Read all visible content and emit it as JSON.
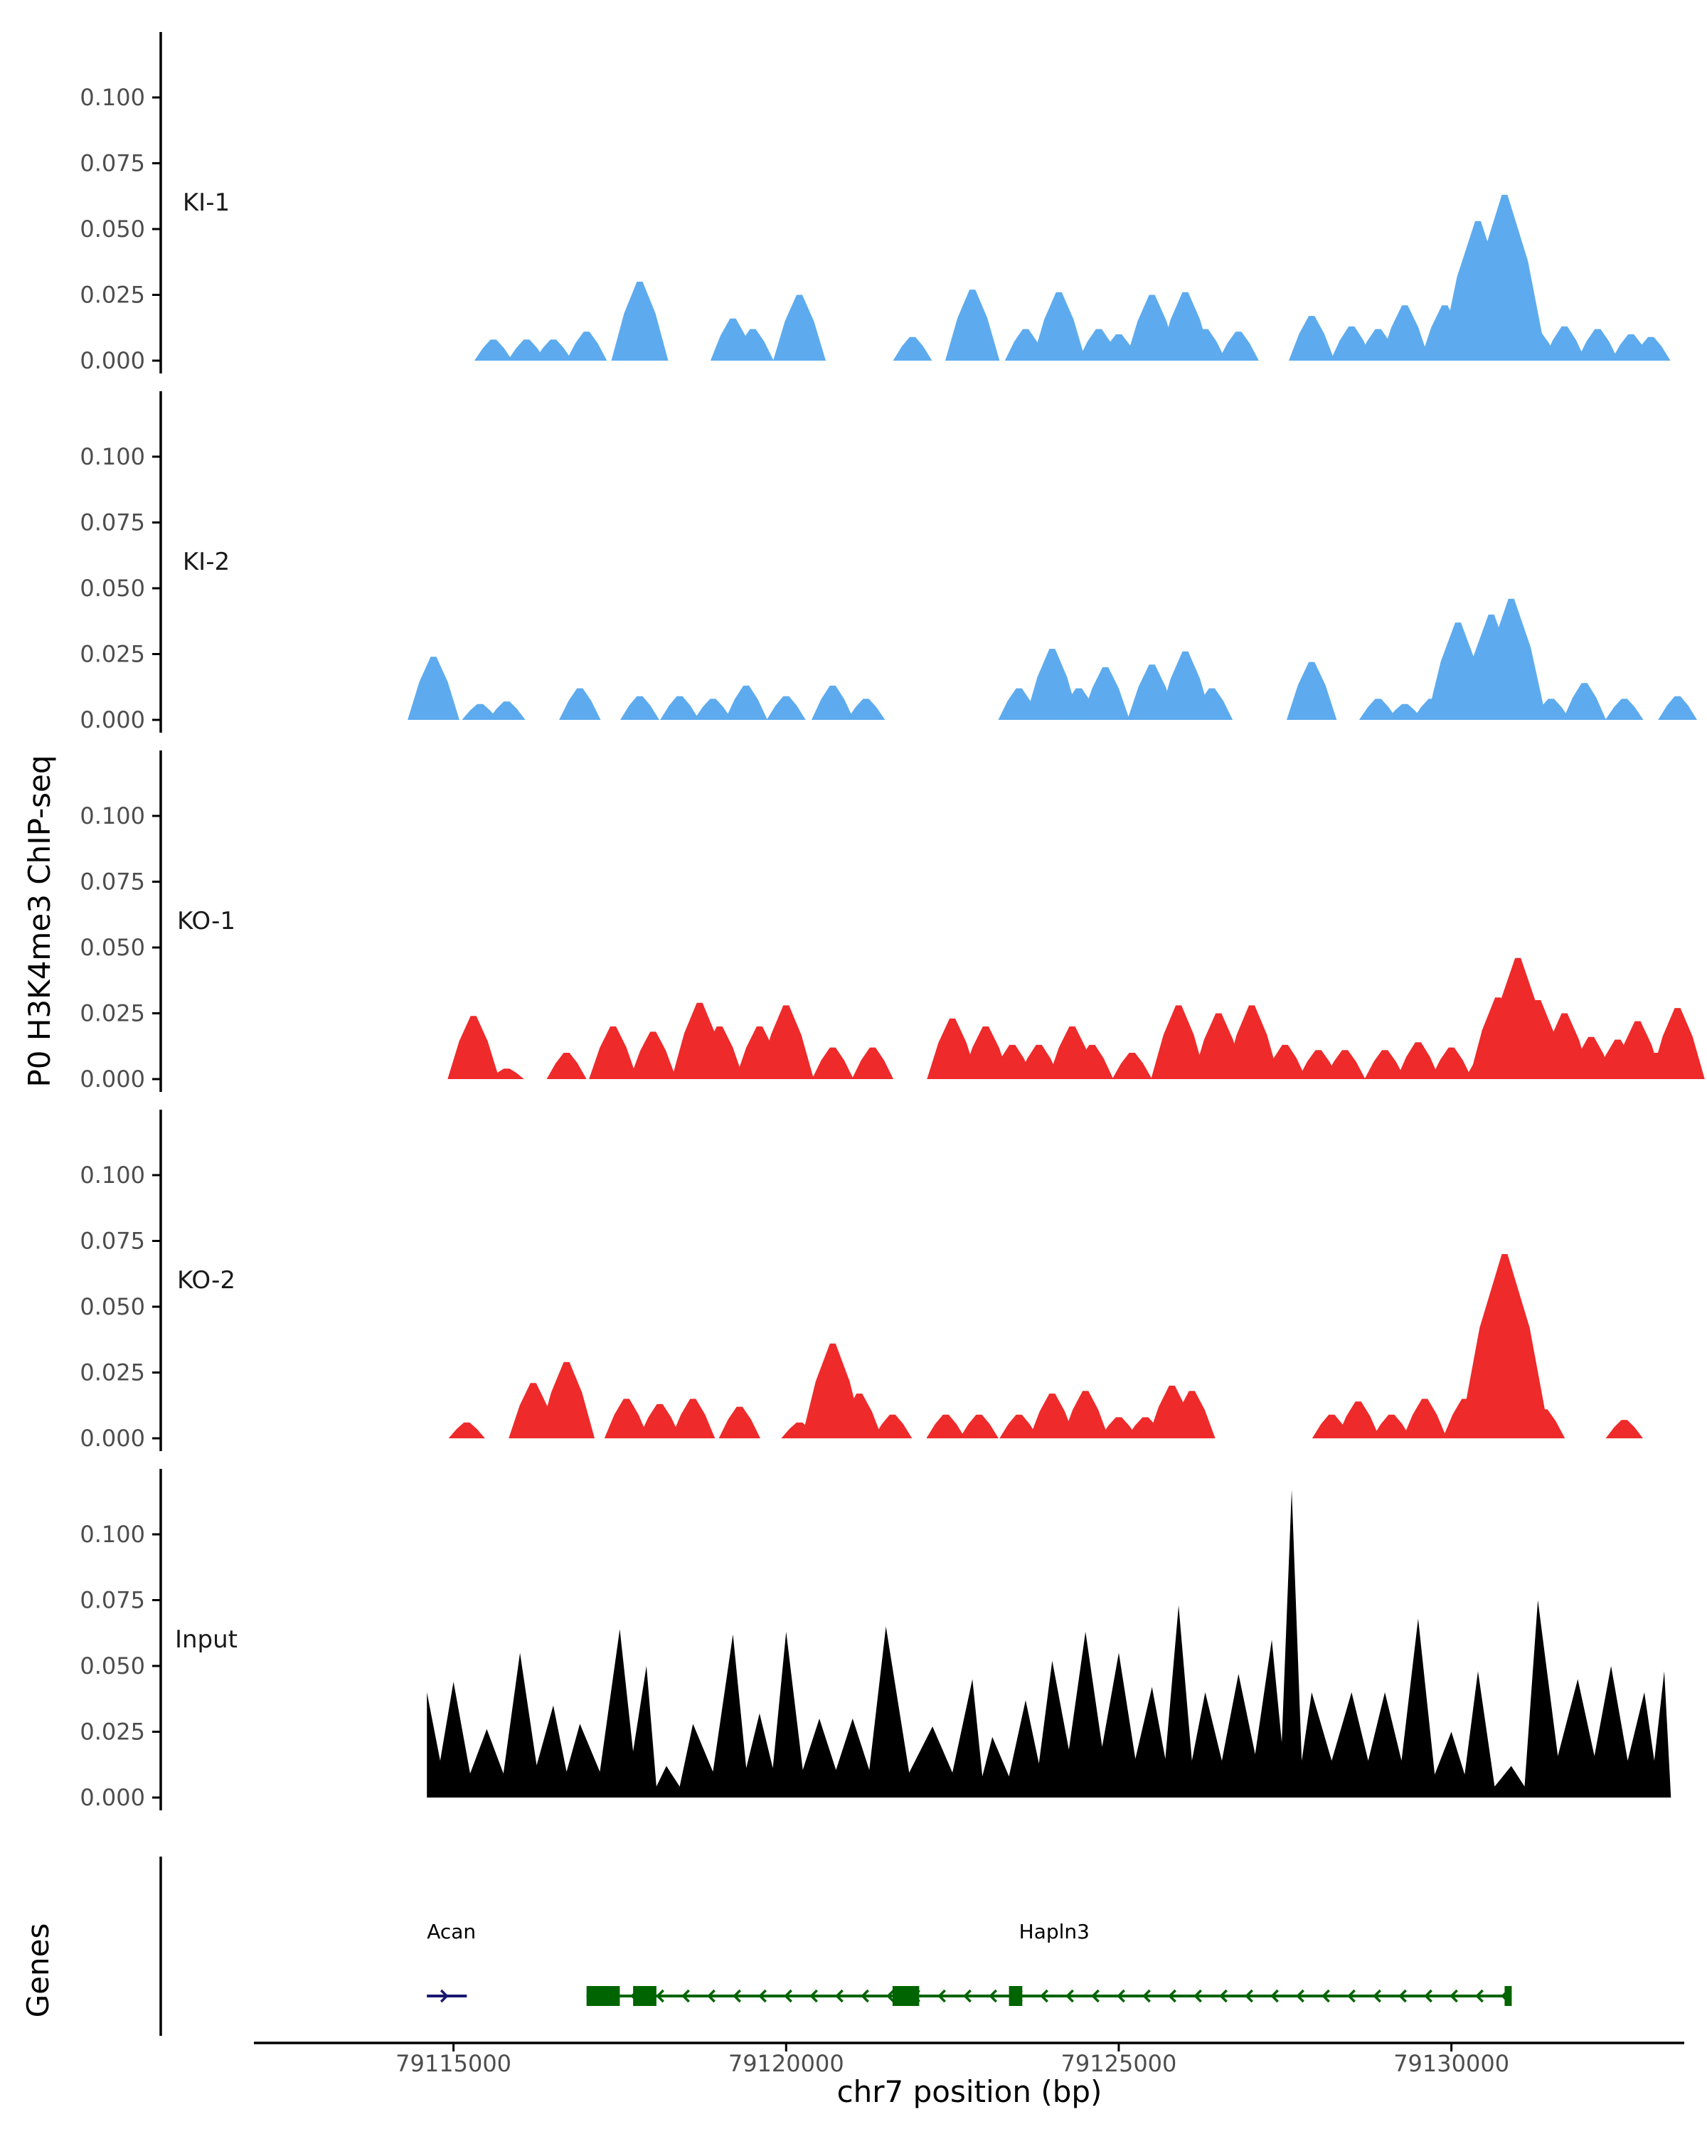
{
  "chart_data": {
    "type": "area",
    "y_axis_title": "P0 H3K4me3 ChIP-seq",
    "x_axis_title": "chr7 position (bp)",
    "genes_axis_title": "Genes",
    "xlim": [
      79112000,
      79133500
    ],
    "ylim": [
      0,
      0.12
    ],
    "y_ticks": [
      0.0,
      0.025,
      0.05,
      0.075,
      0.1
    ],
    "y_tick_labels": [
      "0.000",
      "0.025",
      "0.050",
      "0.075",
      "0.100"
    ],
    "x_ticks": [
      79115000,
      79120000,
      79125000,
      79130000
    ],
    "x_tick_labels": [
      "79115000",
      "79120000",
      "79125000",
      "79130000"
    ],
    "tracks": [
      {
        "name": "KI-1",
        "color": "#5dabee",
        "peaks": [
          [
            79115600,
            0.008
          ],
          [
            79116100,
            0.008
          ],
          [
            79116500,
            0.008
          ],
          [
            79117000,
            0.011
          ],
          [
            79117800,
            0.03
          ],
          [
            79119200,
            0.016
          ],
          [
            79119500,
            0.012
          ],
          [
            79120200,
            0.025
          ],
          [
            79121900,
            0.009
          ],
          [
            79122800,
            0.027
          ],
          [
            79123600,
            0.012
          ],
          [
            79124100,
            0.026
          ],
          [
            79124700,
            0.012
          ],
          [
            79125000,
            0.01
          ],
          [
            79125500,
            0.025
          ],
          [
            79126000,
            0.026
          ],
          [
            79126300,
            0.012
          ],
          [
            79126800,
            0.011
          ],
          [
            79127900,
            0.017
          ],
          [
            79128500,
            0.013
          ],
          [
            79128900,
            0.012
          ],
          [
            79129300,
            0.021
          ],
          [
            79129900,
            0.021
          ],
          [
            79130400,
            0.053
          ],
          [
            79130800,
            0.063
          ],
          [
            79131300,
            0.011
          ],
          [
            79131700,
            0.013
          ],
          [
            79132200,
            0.012
          ],
          [
            79132700,
            0.01
          ],
          [
            79133000,
            0.009
          ]
        ]
      },
      {
        "name": "KI-2",
        "color": "#5dabee",
        "peaks": [
          [
            79114700,
            0.024
          ],
          [
            79115400,
            0.006
          ],
          [
            79115800,
            0.007
          ],
          [
            79116900,
            0.012
          ],
          [
            79117800,
            0.009
          ],
          [
            79118400,
            0.009
          ],
          [
            79118900,
            0.008
          ],
          [
            79119400,
            0.013
          ],
          [
            79120000,
            0.009
          ],
          [
            79120700,
            0.013
          ],
          [
            79121200,
            0.008
          ],
          [
            79123500,
            0.012
          ],
          [
            79124000,
            0.027
          ],
          [
            79124400,
            0.012
          ],
          [
            79124800,
            0.02
          ],
          [
            79125500,
            0.021
          ],
          [
            79126000,
            0.026
          ],
          [
            79126400,
            0.012
          ],
          [
            79127900,
            0.022
          ],
          [
            79128900,
            0.008
          ],
          [
            79129300,
            0.006
          ],
          [
            79129700,
            0.008
          ],
          [
            79130100,
            0.037
          ],
          [
            79130600,
            0.04
          ],
          [
            79130900,
            0.046
          ],
          [
            79131500,
            0.008
          ],
          [
            79132000,
            0.014
          ],
          [
            79132600,
            0.008
          ],
          [
            79133400,
            0.009
          ]
        ]
      },
      {
        "name": "KO-1",
        "color": "#ee2a2a",
        "peaks": [
          [
            79115300,
            0.024
          ],
          [
            79115800,
            0.004
          ],
          [
            79116700,
            0.01
          ],
          [
            79117400,
            0.02
          ],
          [
            79118000,
            0.018
          ],
          [
            79118700,
            0.029
          ],
          [
            79119000,
            0.02
          ],
          [
            79119600,
            0.02
          ],
          [
            79120000,
            0.028
          ],
          [
            79120700,
            0.012
          ],
          [
            79121300,
            0.012
          ],
          [
            79122500,
            0.023
          ],
          [
            79123000,
            0.02
          ],
          [
            79123400,
            0.013
          ],
          [
            79123800,
            0.013
          ],
          [
            79124300,
            0.02
          ],
          [
            79124600,
            0.013
          ],
          [
            79125200,
            0.01
          ],
          [
            79125900,
            0.028
          ],
          [
            79126500,
            0.025
          ],
          [
            79127000,
            0.028
          ],
          [
            79127500,
            0.013
          ],
          [
            79128000,
            0.011
          ],
          [
            79128400,
            0.011
          ],
          [
            79129000,
            0.011
          ],
          [
            79129500,
            0.014
          ],
          [
            79130000,
            0.012
          ],
          [
            79130500,
            0.01
          ],
          [
            79130700,
            0.031
          ],
          [
            79131000,
            0.046
          ],
          [
            79131300,
            0.03
          ],
          [
            79131700,
            0.025
          ],
          [
            79132100,
            0.016
          ],
          [
            79132500,
            0.015
          ],
          [
            79132800,
            0.022
          ],
          [
            79133100,
            0.01
          ],
          [
            79133400,
            0.027
          ]
        ]
      },
      {
        "name": "KO-2",
        "color": "#ee2a2a",
        "peaks": [
          [
            79115200,
            0.006
          ],
          [
            79116200,
            0.021
          ],
          [
            79116700,
            0.029
          ],
          [
            79117600,
            0.015
          ],
          [
            79118100,
            0.013
          ],
          [
            79118600,
            0.015
          ],
          [
            79119300,
            0.012
          ],
          [
            79120200,
            0.006
          ],
          [
            79120700,
            0.036
          ],
          [
            79121100,
            0.017
          ],
          [
            79121600,
            0.009
          ],
          [
            79122400,
            0.009
          ],
          [
            79122900,
            0.009
          ],
          [
            79123500,
            0.009
          ],
          [
            79124000,
            0.017
          ],
          [
            79124500,
            0.018
          ],
          [
            79125000,
            0.008
          ],
          [
            79125400,
            0.008
          ],
          [
            79125800,
            0.02
          ],
          [
            79126100,
            0.018
          ],
          [
            79128200,
            0.009
          ],
          [
            79128600,
            0.014
          ],
          [
            79129100,
            0.009
          ],
          [
            79129600,
            0.015
          ],
          [
            79130200,
            0.015
          ],
          [
            79130800,
            0.07
          ],
          [
            79131400,
            0.011
          ],
          [
            79132600,
            0.007
          ]
        ]
      },
      {
        "name": "Input",
        "color": "#000000",
        "peaks": [
          [
            79114600,
            0.04
          ],
          [
            79115000,
            0.044
          ],
          [
            79115500,
            0.026
          ],
          [
            79116000,
            0.055
          ],
          [
            79116500,
            0.035
          ],
          [
            79116900,
            0.028
          ],
          [
            79117500,
            0.064
          ],
          [
            79117900,
            0.05
          ],
          [
            79118200,
            0.012
          ],
          [
            79118600,
            0.028
          ],
          [
            79119200,
            0.062
          ],
          [
            79119600,
            0.032
          ],
          [
            79120000,
            0.063
          ],
          [
            79120500,
            0.03
          ],
          [
            79121000,
            0.03
          ],
          [
            79121500,
            0.065
          ],
          [
            79122200,
            0.027
          ],
          [
            79122800,
            0.045
          ],
          [
            79123100,
            0.023
          ],
          [
            79123600,
            0.037
          ],
          [
            79124000,
            0.052
          ],
          [
            79124500,
            0.063
          ],
          [
            79125000,
            0.055
          ],
          [
            79125500,
            0.042
          ],
          [
            79125900,
            0.073
          ],
          [
            79126300,
            0.04
          ],
          [
            79126800,
            0.047
          ],
          [
            79127300,
            0.06
          ],
          [
            79127600,
            0.117
          ],
          [
            79127900,
            0.04
          ],
          [
            79128500,
            0.04
          ],
          [
            79129000,
            0.04
          ],
          [
            79129500,
            0.068
          ],
          [
            79130000,
            0.025
          ],
          [
            79130400,
            0.048
          ],
          [
            79130900,
            0.012
          ],
          [
            79131300,
            0.075
          ],
          [
            79131900,
            0.045
          ],
          [
            79132400,
            0.05
          ],
          [
            79132900,
            0.04
          ],
          [
            79133200,
            0.048
          ]
        ]
      }
    ],
    "genes": [
      {
        "name": "Acan",
        "color": "#191970",
        "strand": "+",
        "start": 79114600,
        "end": 79115200,
        "exons": []
      },
      {
        "name": "Hapln3",
        "color": "#006400",
        "strand": "-",
        "start": 79117000,
        "end": 79130900,
        "exons": [
          [
            79117000,
            79117500
          ],
          [
            79117700,
            79118050
          ],
          [
            79121600,
            79122000
          ],
          [
            79123350,
            79123550
          ],
          [
            79130800,
            79130900
          ]
        ]
      }
    ]
  }
}
